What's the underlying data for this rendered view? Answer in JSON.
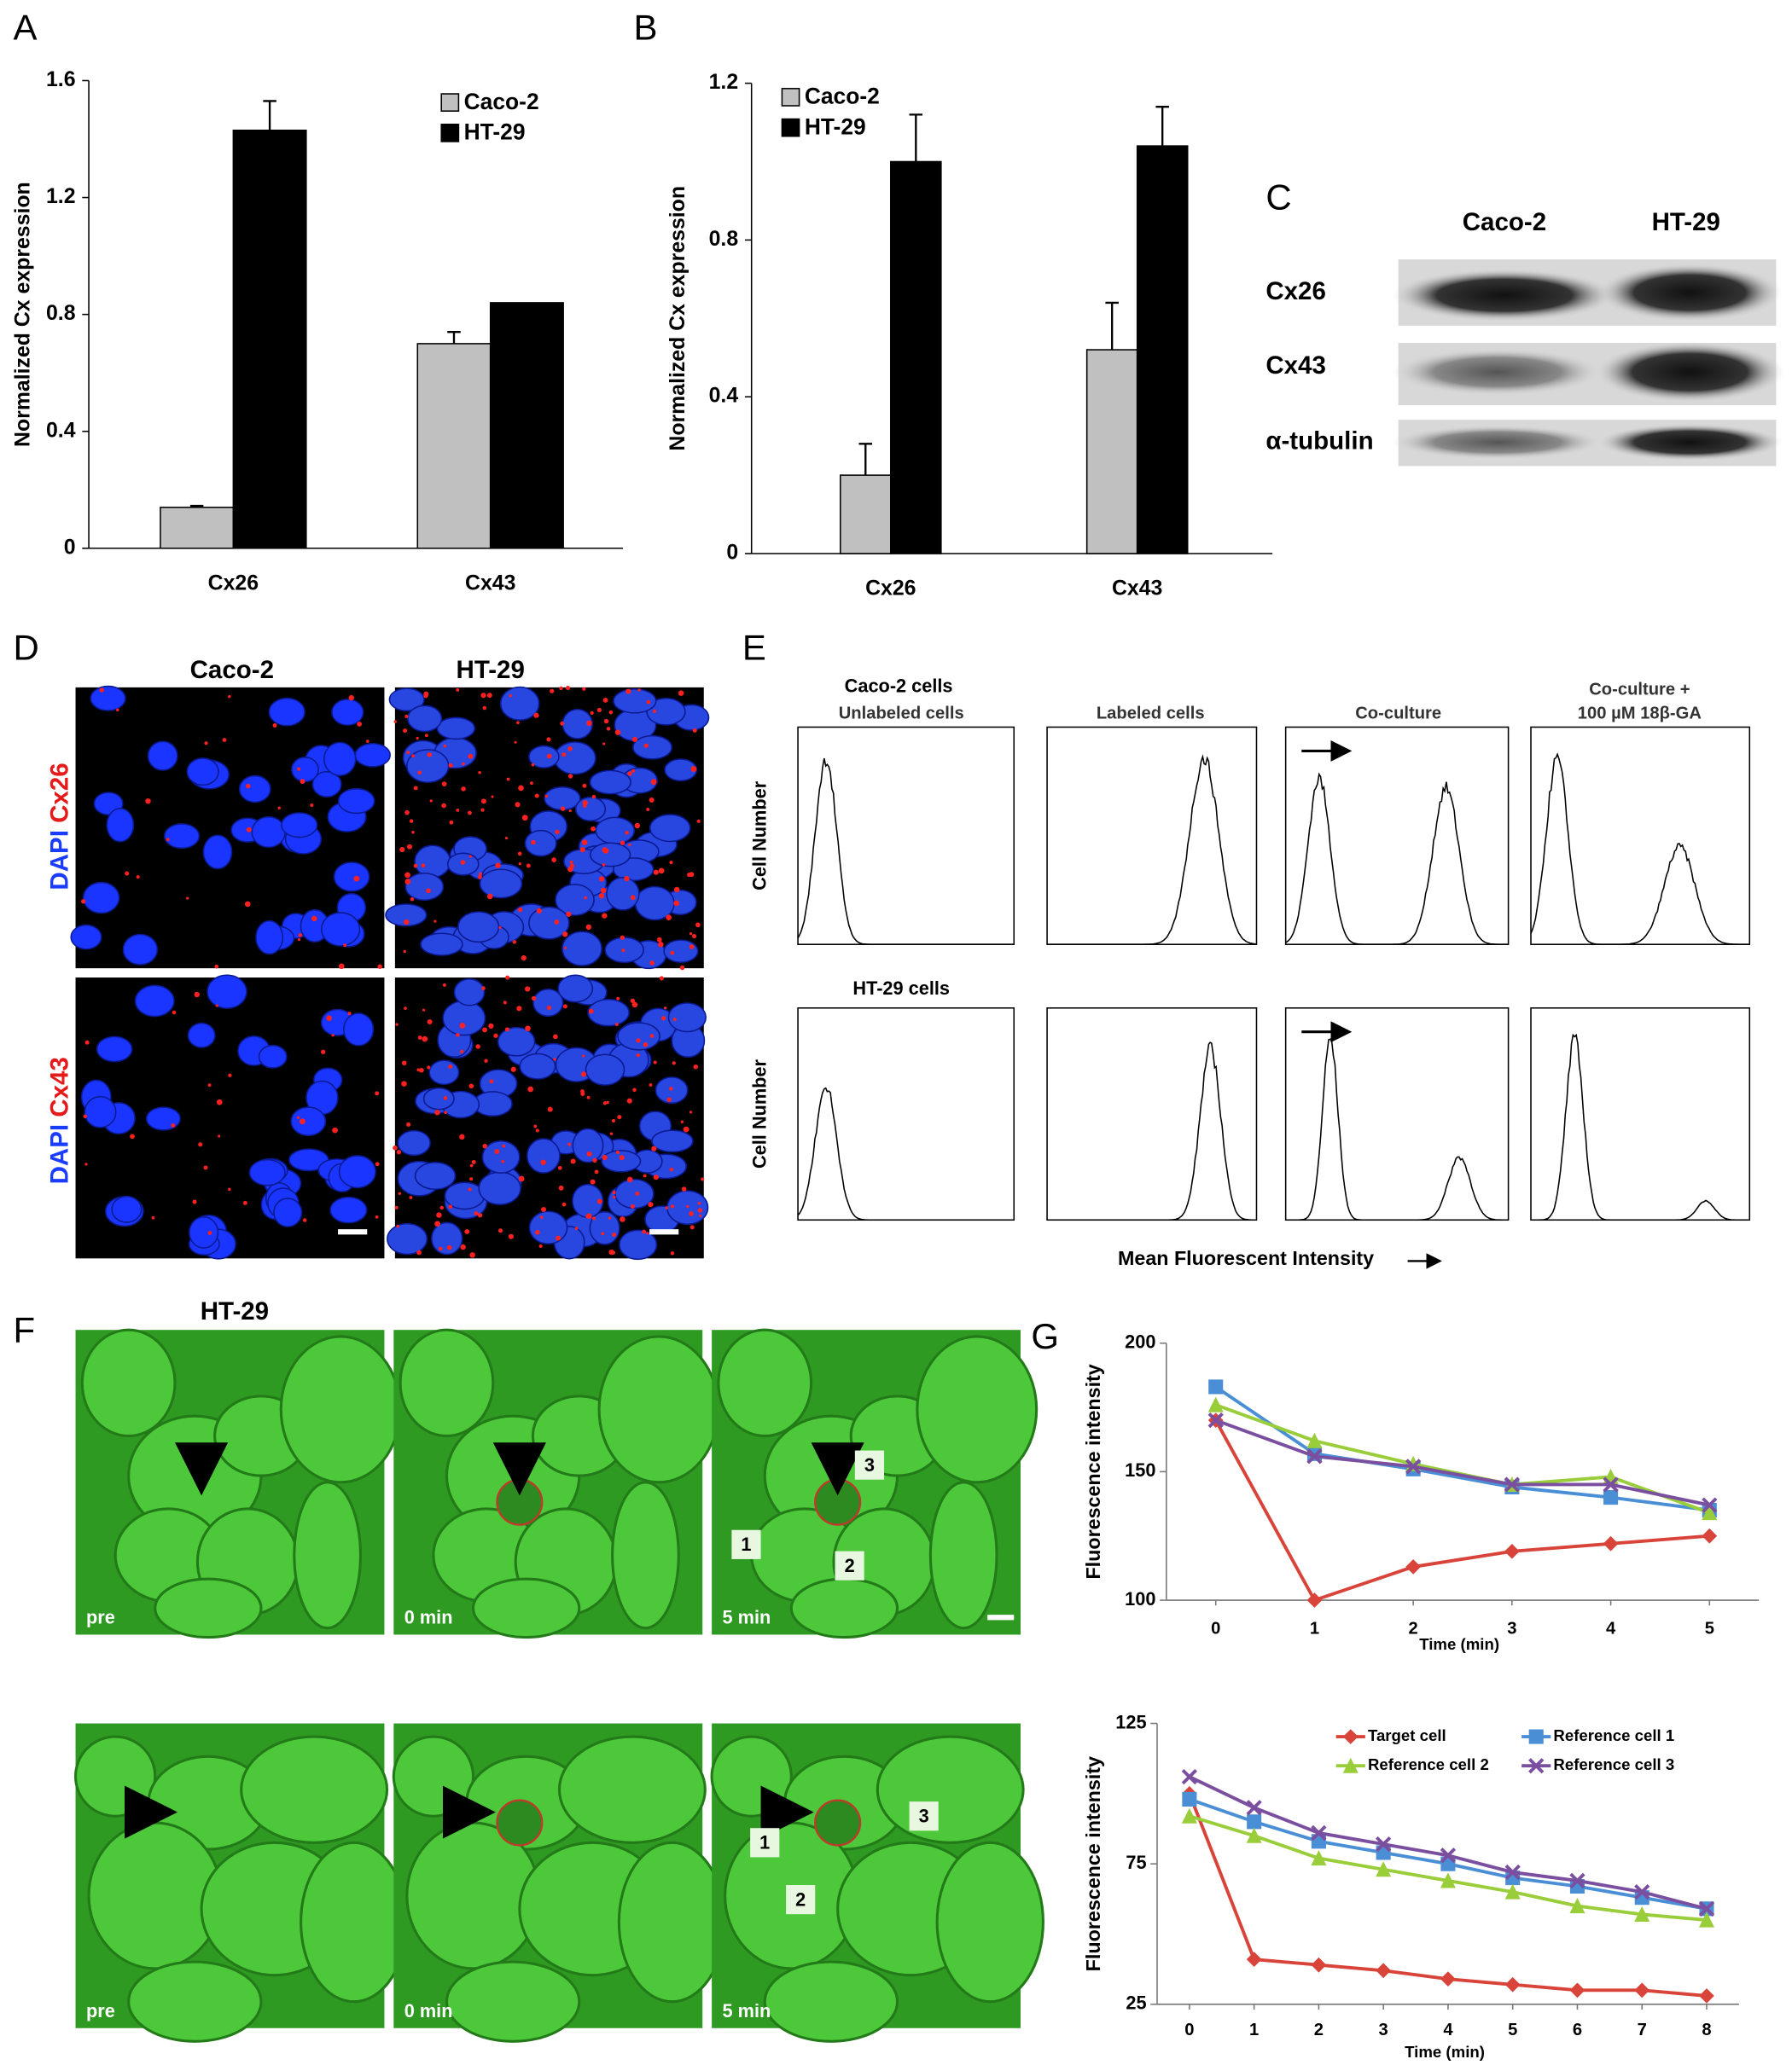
{
  "panel_labels": [
    "A",
    "B",
    "C",
    "D",
    "E",
    "F",
    "G"
  ],
  "blot": {
    "columns": [
      "Caco-2",
      "HT-29"
    ],
    "rows": [
      "Cx26",
      "Cx43",
      "α-tubulin"
    ]
  },
  "staining": {
    "columns": [
      "Caco-2",
      "HT-29"
    ],
    "rows": [
      {
        "stain": "DAPI",
        "marker": "Cx26"
      },
      {
        "stain": "DAPI",
        "marker": "Cx43"
      }
    ]
  },
  "flow": {
    "row_labels": [
      "Caco-2 cells",
      "HT-29 cells"
    ],
    "panel_titles": [
      "Unlabeled cells",
      "Labeled cells",
      "Co-culture",
      "Co-culture +"
    ],
    "panel_subtitle": "100 µM 18β-GA",
    "y_label": "Cell Number",
    "x_label": "Mean Fluorescent Intensity"
  },
  "frap": {
    "title": "HT-29",
    "frames": [
      "pre",
      "0 min",
      "5 min"
    ],
    "cell_numbers": [
      "1",
      "2",
      "3"
    ]
  },
  "chart_data": [
    {
      "type": "bar",
      "panel_label": "A",
      "y_label": "Normalized Cx expression",
      "categories": [
        "Cx26",
        "Cx43"
      ],
      "series": [
        {
          "name": "Caco-2",
          "color": "#c0c0c0",
          "values": [
            0.14,
            0.7
          ],
          "errors": [
            0.005,
            0.04
          ]
        },
        {
          "name": "HT-29",
          "color": "#000000",
          "values": [
            1.43,
            0.84
          ],
          "errors": [
            0.1,
            0
          ]
        }
      ],
      "ylim": [
        0,
        1.6
      ],
      "yticks": [
        0,
        0.4,
        0.8,
        1.2,
        1.6
      ],
      "legend": "top-right"
    },
    {
      "type": "bar",
      "panel_label": "B",
      "y_label": "Normalized Cx expression",
      "categories": [
        "Cx26",
        "Cx43"
      ],
      "series": [
        {
          "name": "Caco-2",
          "color": "#c0c0c0",
          "values": [
            0.2,
            0.52
          ],
          "errors": [
            0.08,
            0.12
          ]
        },
        {
          "name": "HT-29",
          "color": "#000000",
          "values": [
            1.0,
            1.04
          ],
          "errors": [
            0.12,
            0.1
          ]
        }
      ],
      "ylim": [
        0,
        1.2
      ],
      "yticks": [
        0,
        0.4,
        0.8,
        1.2
      ],
      "legend": "top-left"
    },
    {
      "type": "line",
      "panel_label": "G",
      "y_label": "Fluorescence intensity",
      "x_label": "Time (min)",
      "x": [
        0,
        1,
        2,
        3,
        4,
        5
      ],
      "series": [
        {
          "color": "#d9443a",
          "marker": "diamond",
          "values": [
            170,
            100,
            113,
            119,
            122,
            125
          ]
        },
        {
          "color": "#4a8fd6",
          "marker": "square",
          "values": [
            183,
            157,
            151,
            144,
            140,
            135
          ]
        },
        {
          "color": "#9acd3a",
          "marker": "triangle",
          "values": [
            176,
            162,
            153,
            145,
            148,
            134
          ]
        },
        {
          "color": "#7b4fa0",
          "marker": "cross",
          "values": [
            170,
            156,
            152,
            145,
            145,
            137
          ]
        }
      ],
      "xlim": [
        -0.5,
        5.5
      ],
      "xticks": [
        0,
        1,
        2,
        3,
        4,
        5
      ],
      "ylim": [
        100,
        200
      ],
      "yticks": [
        100,
        150,
        200
      ]
    },
    {
      "type": "line",
      "y_label": "Fluorescence intensity",
      "x_label": "Time (min)",
      "x": [
        0,
        1,
        2,
        3,
        4,
        5,
        6,
        7,
        8
      ],
      "series": [
        {
          "name": "Target cell",
          "color": "#d9443a",
          "marker": "diamond",
          "values": [
            100,
            41,
            39,
            37,
            34,
            32,
            30,
            30,
            28
          ]
        },
        {
          "name": "Reference cell 1",
          "color": "#4a8fd6",
          "marker": "square",
          "values": [
            98,
            90,
            83,
            79,
            75,
            70,
            67,
            63,
            59
          ]
        },
        {
          "name": "Reference cell 2",
          "color": "#9acd3a",
          "marker": "triangle",
          "values": [
            92,
            85,
            77,
            73,
            69,
            65,
            60,
            57,
            55
          ]
        },
        {
          "name": "Reference cell 3",
          "color": "#7b4fa0",
          "marker": "cross",
          "values": [
            106,
            95,
            86,
            82,
            78,
            72,
            69,
            65,
            59
          ]
        }
      ],
      "xlim": [
        -0.5,
        8.5
      ],
      "xticks": [
        0,
        1,
        2,
        3,
        4,
        5,
        6,
        7,
        8
      ],
      "ylim": [
        25,
        125
      ],
      "yticks": [
        25,
        75,
        125
      ],
      "legend": "top-right"
    }
  ]
}
